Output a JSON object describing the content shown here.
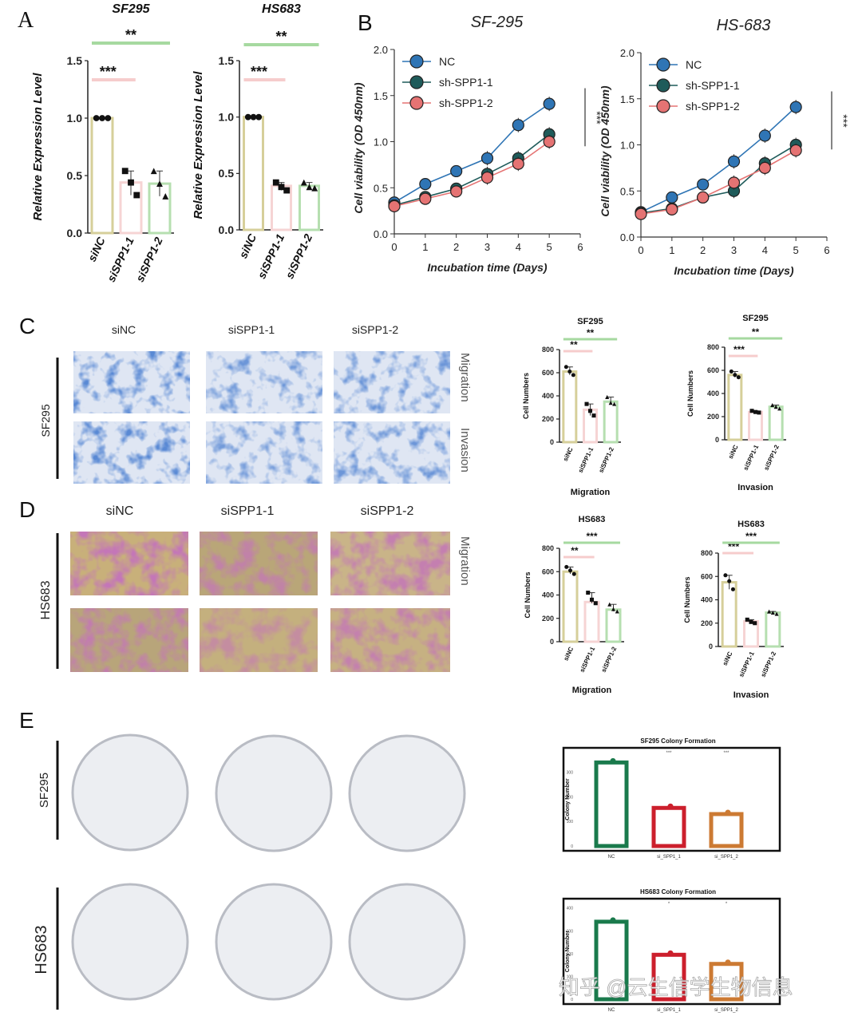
{
  "panels": {
    "A": {
      "label": "A",
      "ylabel": "Relative Expression Level",
      "bar_colors": [
        "#d6cf9a",
        "#f6d4d4",
        "#b6dfb0"
      ],
      "sig_colors": [
        "#a6d9a0",
        "#f6cccc"
      ]
    },
    "B": {
      "label": "B",
      "ylabel": "Cell viability (OD 450nm)",
      "xlabel": "Incubation time (Days)",
      "legend": [
        "NC",
        "sh-SPP1-1",
        "sh-SPP1-2"
      ],
      "colors": [
        "#2f75b5",
        "#1f5b5a",
        "#e57373"
      ],
      "significance": "***"
    },
    "C": {
      "label": "C",
      "cell_line": "SF295",
      "columns": [
        "siNC",
        "siSPP1-1",
        "siSPP1-2"
      ],
      "rows": [
        "Migration",
        "Invasion"
      ],
      "image_color": "#1a3fa8"
    },
    "D": {
      "label": "D",
      "cell_line": "HS683",
      "columns": [
        "siNC",
        "siSPP1-1",
        "siSPP1-2"
      ],
      "rows": [
        "Migration"
      ],
      "image_color": "#8a2f7a"
    },
    "E": {
      "label": "E",
      "rows": [
        "SF295",
        "HS683"
      ]
    }
  },
  "watermark": "知乎 @云生信学生物信息",
  "chart_data": [
    {
      "id": "A1",
      "type": "bar",
      "title": "SF295",
      "categories": [
        "siNC",
        "siSPP1-1",
        "siSPP1-2"
      ],
      "values": [
        1.0,
        0.44,
        0.43
      ],
      "points": [
        [
          1.0,
          1.0,
          1.0
        ],
        [
          0.54,
          0.44,
          0.33
        ],
        [
          0.54,
          0.43,
          0.32
        ]
      ],
      "ylabel": "Relative Expression Level",
      "ylim": [
        0,
        1.5
      ],
      "yticks": [
        "0.0",
        "0.5",
        "1.0",
        "1.5"
      ],
      "significance": [
        {
          "text": "***",
          "pair": [
            0,
            1
          ]
        },
        {
          "text": "**",
          "pair": [
            0,
            2
          ]
        }
      ]
    },
    {
      "id": "A2",
      "type": "bar",
      "title": "HS683",
      "categories": [
        "siNC",
        "siSPP1-1",
        "siSPP1-2"
      ],
      "values": [
        1.0,
        0.39,
        0.39
      ],
      "points": [
        [
          1.0,
          1.0,
          1.0
        ],
        [
          0.42,
          0.38,
          0.35
        ],
        [
          0.42,
          0.38,
          0.37
        ]
      ],
      "ylabel": "Relative Expression Level",
      "ylim": [
        0,
        1.5
      ],
      "yticks": [
        "0.0",
        "0.5",
        "1.0",
        "1.5"
      ],
      "significance": [
        {
          "text": "***",
          "pair": [
            0,
            1
          ]
        },
        {
          "text": "**",
          "pair": [
            0,
            2
          ]
        }
      ]
    },
    {
      "id": "B1",
      "type": "line",
      "title": "SF-295",
      "x": [
        0,
        1,
        2,
        3,
        4,
        5
      ],
      "series": [
        {
          "name": "NC",
          "values": [
            0.34,
            0.54,
            0.68,
            0.82,
            1.18,
            1.41
          ]
        },
        {
          "name": "sh-SPP1-1",
          "values": [
            0.31,
            0.4,
            0.49,
            0.65,
            0.82,
            1.08
          ]
        },
        {
          "name": "sh-SPP1-2",
          "values": [
            0.3,
            0.38,
            0.46,
            0.61,
            0.76,
            1.0
          ]
        }
      ],
      "xlabel": "Incubation time (Days)",
      "ylabel": "Cell viability (OD 450nm)",
      "xlim": [
        0,
        6
      ],
      "ylim": [
        0,
        2.0
      ],
      "xticks": [
        "0",
        "1",
        "2",
        "3",
        "4",
        "5",
        "6"
      ],
      "yticks": [
        "0.0",
        "0.5",
        "1.0",
        "1.5",
        "2.0"
      ],
      "significance": "***"
    },
    {
      "id": "B2",
      "type": "line",
      "title": "HS-683",
      "x": [
        0,
        1,
        2,
        3,
        4,
        5
      ],
      "series": [
        {
          "name": "NC",
          "values": [
            0.27,
            0.43,
            0.57,
            0.82,
            1.1,
            1.41
          ]
        },
        {
          "name": "sh-SPP1-1",
          "values": [
            0.26,
            0.31,
            0.43,
            0.5,
            0.8,
            1.0
          ]
        },
        {
          "name": "sh-SPP1-2",
          "values": [
            0.25,
            0.3,
            0.43,
            0.59,
            0.75,
            0.94
          ]
        }
      ],
      "xlabel": "Incubation time (Days)",
      "ylabel": "Cell viability (OD 450nm)",
      "xlim": [
        0,
        6
      ],
      "ylim": [
        0,
        2.0
      ],
      "xticks": [
        "0",
        "1",
        "2",
        "3",
        "4",
        "5",
        "6"
      ],
      "yticks": [
        "0.0",
        "0.5",
        "1.0",
        "1.5",
        "2.0"
      ],
      "significance": "***"
    },
    {
      "id": "C1",
      "type": "bar",
      "title": "SF295",
      "xlabel": "Migration",
      "categories": [
        "siNC",
        "siSPP1-1",
        "siSPP1-2"
      ],
      "values": [
        610,
        280,
        350
      ],
      "points": [
        [
          650,
          610,
          580
        ],
        [
          330,
          270,
          230
        ],
        [
          390,
          340,
          330
        ]
      ],
      "ylabel": "Cell Numbers",
      "ylim": [
        0,
        800
      ],
      "yticks": [
        "0",
        "200",
        "400",
        "600",
        "800"
      ],
      "significance": [
        {
          "text": "**",
          "pair": [
            0,
            1
          ]
        },
        {
          "text": "**",
          "pair": [
            0,
            2
          ]
        }
      ]
    },
    {
      "id": "C2",
      "type": "bar",
      "title": "SF295",
      "xlabel": "Invasion",
      "categories": [
        "siNC",
        "siSPP1-1",
        "siSPP1-2"
      ],
      "values": [
        560,
        240,
        285
      ],
      "points": [
        [
          590,
          560,
          540
        ],
        [
          250,
          240,
          235
        ],
        [
          300,
          285,
          270
        ]
      ],
      "ylabel": "Cell Numbers",
      "ylim": [
        0,
        800
      ],
      "yticks": [
        "0",
        "200",
        "400",
        "600",
        "800"
      ],
      "significance": [
        {
          "text": "***",
          "pair": [
            0,
            1
          ]
        },
        {
          "text": "**",
          "pair": [
            0,
            2
          ]
        }
      ]
    },
    {
      "id": "D1",
      "type": "bar",
      "title": "HS683",
      "xlabel": "Migration",
      "categories": [
        "siNC",
        "siSPP1-1",
        "siSPP1-2"
      ],
      "values": [
        600,
        340,
        275
      ],
      "points": [
        [
          640,
          610,
          580
        ],
        [
          420,
          360,
          330
        ],
        [
          320,
          280,
          260
        ]
      ],
      "ylabel": "Cell Numbers",
      "ylim": [
        0,
        800
      ],
      "yticks": [
        "0",
        "200",
        "400",
        "600",
        "800"
      ],
      "significance": [
        {
          "text": "**",
          "pair": [
            0,
            1
          ]
        },
        {
          "text": "***",
          "pair": [
            0,
            2
          ]
        }
      ]
    },
    {
      "id": "D2",
      "type": "bar",
      "title": "HS683",
      "xlabel": "Invasion",
      "categories": [
        "siNC",
        "siSPP1-1",
        "siSPP1-2"
      ],
      "values": [
        550,
        215,
        290
      ],
      "points": [
        [
          610,
          560,
          490
        ],
        [
          230,
          210,
          200
        ],
        [
          300,
          290,
          280
        ]
      ],
      "ylabel": "Cell Numbers",
      "ylim": [
        0,
        800
      ],
      "yticks": [
        "0",
        "200",
        "400",
        "600",
        "800"
      ],
      "significance": [
        {
          "text": "***",
          "pair": [
            0,
            1
          ]
        },
        {
          "text": "***",
          "pair": [
            0,
            2
          ]
        }
      ]
    },
    {
      "id": "E1",
      "type": "bar",
      "title": "SF295 Colony Formation",
      "categories": [
        "NC",
        "si_SPP1_1",
        "si_SPP1_2"
      ],
      "values": [
        340,
        155,
        130
      ],
      "ylabel": "Colony Number",
      "ylim": [
        0,
        380
      ],
      "yticks": [
        "0",
        "100",
        "200",
        "300"
      ],
      "colors": [
        "#1a7a4c",
        "#cc1f2c",
        "#cc7a33"
      ],
      "significance": [
        "",
        "***",
        "***"
      ]
    },
    {
      "id": "E2",
      "type": "bar",
      "title": "HS683 Colony Formation",
      "categories": [
        "NC",
        "si_SPP1_1",
        "si_SPP1_2"
      ],
      "values": [
        340,
        195,
        155
      ],
      "ylabel": "Colony Number",
      "ylim": [
        0,
        420
      ],
      "yticks": [
        "0",
        "100",
        "200",
        "300",
        "400"
      ],
      "colors": [
        "#1a7a4c",
        "#cc1f2c",
        "#cc7a33"
      ],
      "significance": [
        "",
        "*",
        "*"
      ]
    }
  ]
}
